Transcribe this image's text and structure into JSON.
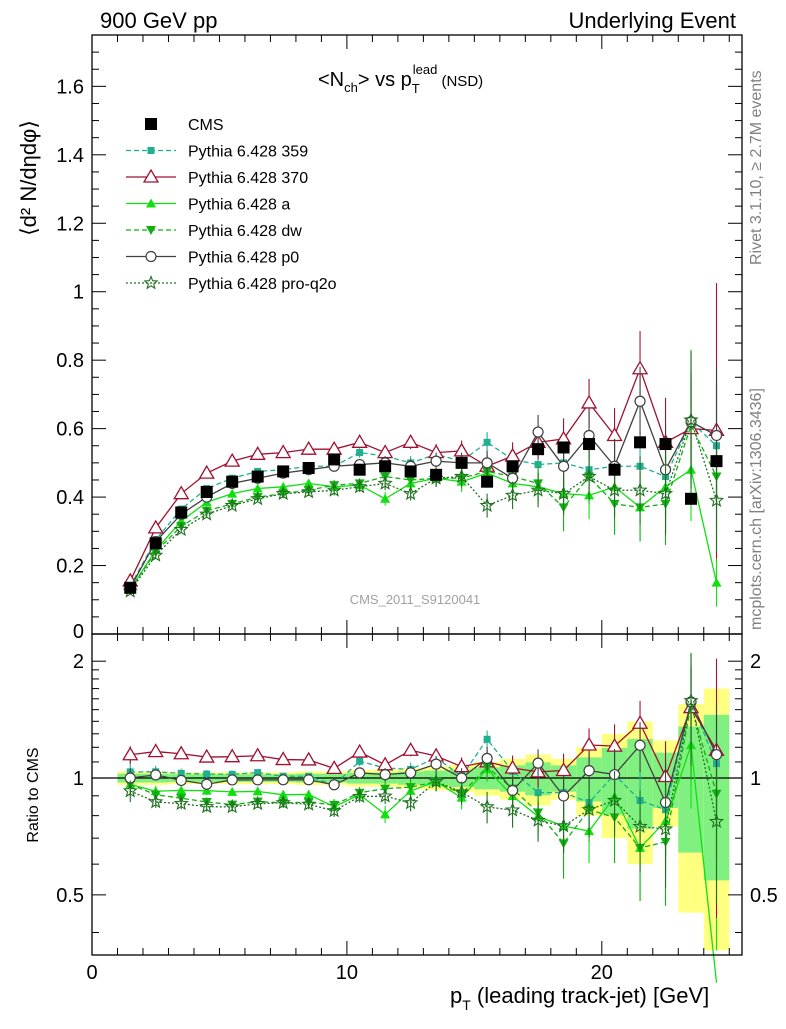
{
  "header": {
    "left": "900 GeV pp",
    "right": "Underlying Event"
  },
  "side_labels": {
    "rivet": "Rivet 3.1.10, ≥ 2.7M events",
    "mcplots": "mcplots.cern.ch [arXiv:1306.3436]"
  },
  "watermark": "CMS_2011_S9120041",
  "chart_data": {
    "type": "scatter",
    "title_parts": {
      "a": "<N",
      "a_sub": "ch",
      "b": "> vs p",
      "b_sub": "T",
      "b_sup": "lead",
      "c": " (NSD)"
    },
    "ylabel": "⟨d² N/dηdφ⟩",
    "ylabel_ratio": "Ratio to CMS",
    "xlabel_parts": {
      "a": "p",
      "a_sub": "T",
      "b": " (leading track-jet) [GeV]"
    },
    "xlim": [
      0,
      25.5
    ],
    "ylim": [
      0,
      1.75
    ],
    "ratio_ylim": [
      0.35,
      2.35
    ],
    "ratio_scale": "log",
    "x": [
      1.5,
      2.5,
      3.5,
      4.5,
      5.5,
      6.5,
      7.5,
      8.5,
      9.5,
      10.5,
      11.5,
      12.5,
      13.5,
      14.5,
      15.5,
      16.5,
      17.5,
      18.5,
      19.5,
      20.5,
      21.5,
      22.5,
      23.5,
      24.5
    ],
    "main_ticks": {
      "values": [
        0.2,
        0.4,
        0.6,
        0.8,
        1,
        1.2,
        1.4,
        1.6
      ],
      "labels": [
        "0.2",
        "0.4",
        "0.6",
        "0.8",
        "1",
        "1.2",
        "1.4",
        "1.6"
      ],
      "zero_label": "0"
    },
    "x_ticks": {
      "values": [
        0,
        10,
        20
      ],
      "labels": [
        "0",
        "10",
        "20"
      ]
    },
    "ratio_ticks": {
      "values": [
        0.5,
        1,
        2
      ],
      "labels": [
        "0.5",
        "1",
        "2"
      ]
    },
    "data": {
      "name": "CMS",
      "values": [
        0.135,
        0.265,
        0.355,
        0.415,
        0.445,
        0.46,
        0.475,
        0.485,
        0.51,
        0.48,
        0.49,
        0.475,
        0.465,
        0.5,
        0.445,
        0.49,
        0.54,
        0.545,
        0.555,
        0.48,
        0.56,
        0.555,
        0.395,
        0.505
      ],
      "band_rel": [
        0.04,
        0.04,
        0.035,
        0.035,
        0.035,
        0.035,
        0.035,
        0.04,
        0.04,
        0.05,
        0.05,
        0.06,
        0.07,
        0.08,
        0.1,
        0.12,
        0.15,
        0.12,
        0.2,
        0.3,
        0.4,
        0.25,
        0.55,
        0.7
      ]
    },
    "series": [
      {
        "name": "Pythia 6.428 359",
        "color": "#20b090",
        "dash": "5,3",
        "marker": "square-small",
        "values": [
          0.14,
          0.275,
          0.365,
          0.425,
          0.455,
          0.475,
          0.48,
          0.49,
          0.49,
          0.53,
          0.52,
          0.5,
          0.525,
          0.505,
          0.56,
          0.51,
          0.495,
          0.5,
          0.48,
          0.49,
          0.49,
          0.46,
          0.62,
          0.55
        ],
        "err": [
          0.01,
          0.01,
          0.01,
          0.01,
          0.01,
          0.01,
          0.01,
          0.01,
          0.012,
          0.015,
          0.015,
          0.02,
          0.02,
          0.025,
          0.03,
          0.04,
          0.05,
          0.06,
          0.07,
          0.08,
          0.1,
          0.12,
          0.15,
          0.18
        ]
      },
      {
        "name": "Pythia 6.428 370",
        "color": "#a01030",
        "dash": "",
        "marker": "triangle-open",
        "values": [
          0.155,
          0.31,
          0.41,
          0.47,
          0.505,
          0.525,
          0.53,
          0.54,
          0.54,
          0.56,
          0.53,
          0.56,
          0.53,
          0.535,
          0.49,
          0.52,
          0.56,
          0.57,
          0.675,
          0.58,
          0.775,
          0.56,
          0.6,
          0.595
        ],
        "err": [
          0.008,
          0.008,
          0.01,
          0.01,
          0.01,
          0.01,
          0.012,
          0.012,
          0.015,
          0.015,
          0.02,
          0.02,
          0.025,
          0.03,
          0.035,
          0.04,
          0.05,
          0.06,
          0.07,
          0.08,
          0.11,
          0.13,
          0.15,
          0.43
        ]
      },
      {
        "name": "Pythia 6.428 a",
        "color": "#10e010",
        "dash": "",
        "marker": "triangle-filled",
        "values": [
          0.13,
          0.245,
          0.33,
          0.385,
          0.41,
          0.425,
          0.43,
          0.44,
          0.43,
          0.435,
          0.395,
          0.44,
          0.455,
          0.445,
          0.47,
          0.44,
          0.43,
          0.41,
          0.405,
          0.43,
          0.37,
          0.43,
          0.48,
          0.15
        ],
        "err": [
          0.008,
          0.008,
          0.01,
          0.01,
          0.01,
          0.01,
          0.012,
          0.012,
          0.015,
          0.015,
          0.02,
          0.02,
          0.025,
          0.03,
          0.035,
          0.04,
          0.05,
          0.06,
          0.07,
          0.08,
          0.1,
          0.12,
          0.15,
          0.07
        ]
      },
      {
        "name": "Pythia 6.428 dw",
        "color": "#10b010",
        "dash": "5,3",
        "marker": "triangle-down",
        "values": [
          0.13,
          0.24,
          0.315,
          0.36,
          0.38,
          0.4,
          0.41,
          0.42,
          0.435,
          0.44,
          0.46,
          0.45,
          0.455,
          0.455,
          0.475,
          0.46,
          0.44,
          0.37,
          0.46,
          0.38,
          0.37,
          0.38,
          0.61,
          0.46
        ],
        "err": [
          0.008,
          0.008,
          0.01,
          0.01,
          0.01,
          0.01,
          0.012,
          0.012,
          0.015,
          0.015,
          0.02,
          0.02,
          0.025,
          0.03,
          0.035,
          0.04,
          0.05,
          0.07,
          0.08,
          0.09,
          0.1,
          0.12,
          0.22,
          0.15
        ]
      },
      {
        "name": "Pythia 6.428 p0",
        "color": "#404040",
        "dash": "",
        "marker": "circle-open",
        "values": [
          0.135,
          0.27,
          0.35,
          0.4,
          0.44,
          0.455,
          0.47,
          0.48,
          0.49,
          0.495,
          0.5,
          0.49,
          0.505,
          0.5,
          0.5,
          0.455,
          0.59,
          0.49,
          0.58,
          0.49,
          0.68,
          0.48,
          0.62,
          0.58
        ],
        "err": [
          0.008,
          0.008,
          0.01,
          0.01,
          0.01,
          0.01,
          0.012,
          0.012,
          0.015,
          0.015,
          0.02,
          0.02,
          0.025,
          0.03,
          0.035,
          0.04,
          0.05,
          0.06,
          0.07,
          0.08,
          0.1,
          0.13,
          0.15,
          0.2
        ]
      },
      {
        "name": "Pythia 6.428 pro-q2o",
        "color": "#207020",
        "dash": "2,2",
        "marker": "star",
        "values": [
          0.125,
          0.23,
          0.305,
          0.35,
          0.375,
          0.395,
          0.41,
          0.415,
          0.42,
          0.43,
          0.44,
          0.41,
          0.455,
          0.46,
          0.375,
          0.405,
          0.42,
          0.41,
          0.46,
          0.42,
          0.42,
          0.41,
          0.625,
          0.39
        ],
        "err": [
          0.008,
          0.008,
          0.01,
          0.01,
          0.01,
          0.01,
          0.012,
          0.012,
          0.015,
          0.015,
          0.02,
          0.02,
          0.025,
          0.03,
          0.035,
          0.04,
          0.05,
          0.06,
          0.07,
          0.08,
          0.1,
          0.12,
          0.2,
          0.15
        ]
      }
    ]
  }
}
